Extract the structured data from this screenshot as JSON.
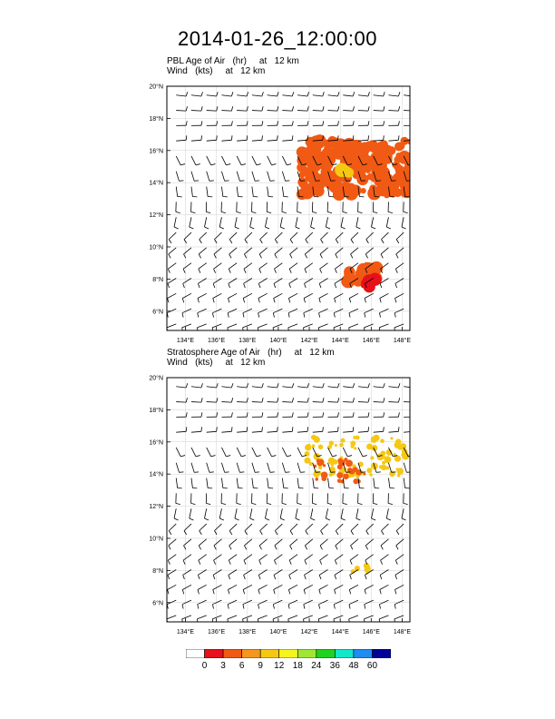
{
  "title": "2014-01-26_12:00:00",
  "panels": [
    {
      "field_line": "PBL Age of Air   (hr)     at   12 km",
      "wind_line": "Wind   (kts)     at   12 km"
    },
    {
      "field_line": "Stratosphere Age of Air   (hr)     at   12 km",
      "wind_line": "Wind   (kts)     at   12 km"
    }
  ],
  "colorbar": {
    "colors": [
      "#ffffff",
      "#e8101a",
      "#f05a14",
      "#f5961e",
      "#f5c814",
      "#f5f51e",
      "#a0e632",
      "#1ed21e",
      "#14e6c8",
      "#1e8cf0",
      "#000096"
    ],
    "labels": [
      "0",
      "3",
      "6",
      "9",
      "12",
      "18",
      "24",
      "36",
      "48",
      "60"
    ]
  },
  "chart_data": [
    {
      "type": "heatmap",
      "subtitle": "PBL Age of Air   (hr)     at   12 km",
      "xlabel": "",
      "ylabel": "",
      "xlim": [
        132.8,
        148.5
      ],
      "ylim": [
        4.8,
        20
      ],
      "x_ticks": [
        "134°E",
        "136°E",
        "138°E",
        "140°E",
        "142°E",
        "144°E",
        "146°E",
        "148°E"
      ],
      "y_ticks": [
        "6°N",
        "8°N",
        "10°N",
        "12°N",
        "14°N",
        "16°N",
        "18°N",
        "20°N"
      ],
      "fields": [
        {
          "value_hr": 3,
          "lon": [
            141.5,
            148.5
          ],
          "lat": [
            13.2,
            16.6
          ]
        },
        {
          "value_hr": 9,
          "lon": [
            144.1,
            144.6
          ],
          "lat": [
            14.4,
            14.9
          ]
        },
        {
          "value_hr": 3,
          "lon": [
            144.3,
            146.4
          ],
          "lat": [
            7.6,
            8.8
          ]
        },
        {
          "value_hr": 0.5,
          "lon": [
            145.5,
            146.3
          ],
          "lat": [
            7.5,
            8.0
          ]
        }
      ]
    },
    {
      "type": "heatmap",
      "subtitle": "Stratosphere Age of Air   (hr)     at   12 km",
      "xlabel": "",
      "ylabel": "",
      "xlim": [
        132.8,
        148.5
      ],
      "ylim": [
        4.8,
        20
      ],
      "x_ticks": [
        "134°E",
        "136°E",
        "138°E",
        "140°E",
        "142°E",
        "144°E",
        "146°E",
        "148°E"
      ],
      "y_ticks": [
        "6°N",
        "8°N",
        "10°N",
        "12°N",
        "14°N",
        "16°N",
        "18°N",
        "20°N"
      ],
      "fields": [
        {
          "value_hr": 9,
          "lon": [
            141.8,
            148.3
          ],
          "lat": [
            13.8,
            16.3
          ]
        },
        {
          "value_hr": 3,
          "lon": [
            142.3,
            145.8
          ],
          "lat": [
            13.5,
            15.0
          ]
        },
        {
          "value_hr": 9,
          "lon": [
            144.8,
            146.0
          ],
          "lat": [
            7.8,
            8.4
          ]
        }
      ]
    }
  ]
}
